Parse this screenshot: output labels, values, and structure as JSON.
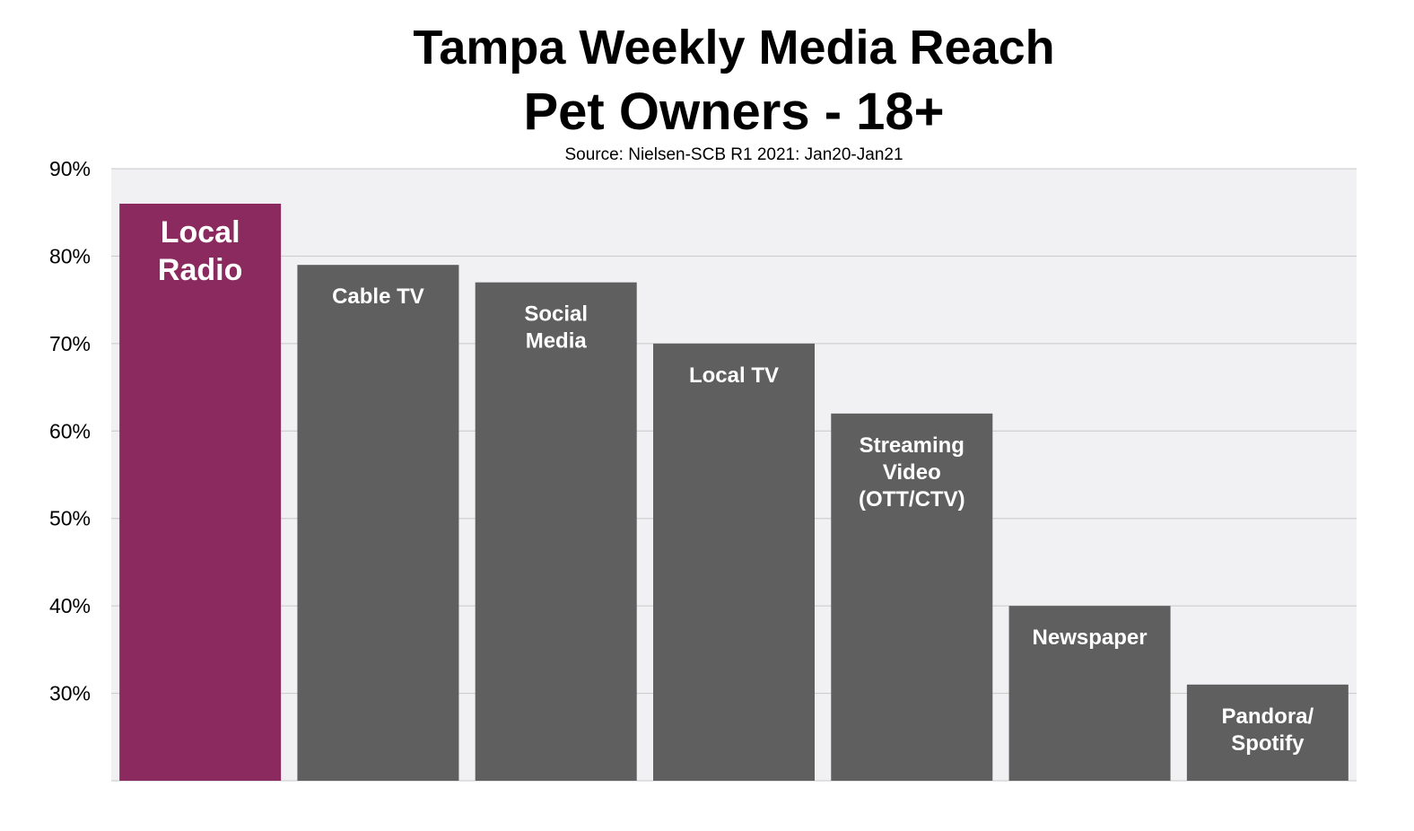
{
  "chart_data": {
    "type": "bar",
    "title": "Tampa Weekly Media Reach",
    "title_line2": "Pet Owners - 18+",
    "subtitle": "Source: Nielsen-SCB R1 2021: Jan20-Jan21",
    "xlabel": "",
    "ylabel": "",
    "ylim": [
      20,
      90
    ],
    "yticks": [
      "30%",
      "40%",
      "50%",
      "60%",
      "70%",
      "80%",
      "90%"
    ],
    "grid": true,
    "legend": "none",
    "categories": [
      "Local Radio",
      "Cable TV",
      "Social Media",
      "Local TV",
      "Streaming Video (OTT/CTV)",
      "Newspaper",
      "Pandora/ Spotify"
    ],
    "label_lines": [
      [
        "Local",
        "Radio"
      ],
      [
        "Cable TV"
      ],
      [
        "Social",
        "Media"
      ],
      [
        "Local TV"
      ],
      [
        "Streaming",
        "Video",
        "(OTT/CTV)"
      ],
      [
        "Newspaper"
      ],
      [
        "Pandora/",
        "Spotify"
      ]
    ],
    "values": [
      86,
      79,
      77,
      70,
      62,
      40,
      31
    ],
    "colors": {
      "highlight": "#8b2a5e",
      "bar": "#5f5f5f",
      "plot_background": "#f1f1f3",
      "grid": "#c8c8c8"
    },
    "highlight_index": 0
  }
}
